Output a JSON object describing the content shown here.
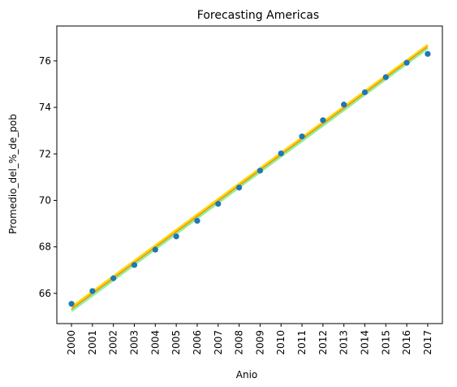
{
  "chart_data": {
    "type": "scatter",
    "title": "Forecasting Americas",
    "xlabel": "Anio",
    "ylabel": "Promedio_del_%_de_pob",
    "x": [
      2000,
      2001,
      2002,
      2003,
      2004,
      2005,
      2006,
      2007,
      2008,
      2009,
      2010,
      2011,
      2012,
      2013,
      2014,
      2015,
      2016,
      2017
    ],
    "y": [
      65.55,
      66.1,
      66.65,
      67.22,
      67.88,
      68.45,
      69.12,
      69.85,
      70.55,
      71.28,
      72.02,
      72.75,
      73.45,
      74.12,
      74.65,
      75.3,
      75.92,
      76.3
    ],
    "xlim": [
      1999.3,
      2017.7
    ],
    "ylim": [
      64.7,
      77.5
    ],
    "yticks": [
      66,
      68,
      70,
      72,
      74,
      76
    ],
    "xticks": [
      2000,
      2001,
      2002,
      2003,
      2004,
      2005,
      2006,
      2007,
      2008,
      2009,
      2010,
      2011,
      2012,
      2013,
      2014,
      2015,
      2016,
      2017
    ],
    "point_color": "#1f77b4",
    "fit_lines": [
      {
        "start": [
          2000,
          65.25
        ],
        "end": [
          2017,
          76.55
        ],
        "color": "#90ee90",
        "width": 3
      },
      {
        "start": [
          2000,
          65.4
        ],
        "end": [
          2017,
          76.68
        ],
        "color": "#ffd700",
        "width": 3
      },
      {
        "start": [
          2000,
          65.33
        ],
        "end": [
          2017,
          76.62
        ],
        "color": "#ff7f0e",
        "width": 1.2
      }
    ],
    "grid": false,
    "legend": "none"
  }
}
